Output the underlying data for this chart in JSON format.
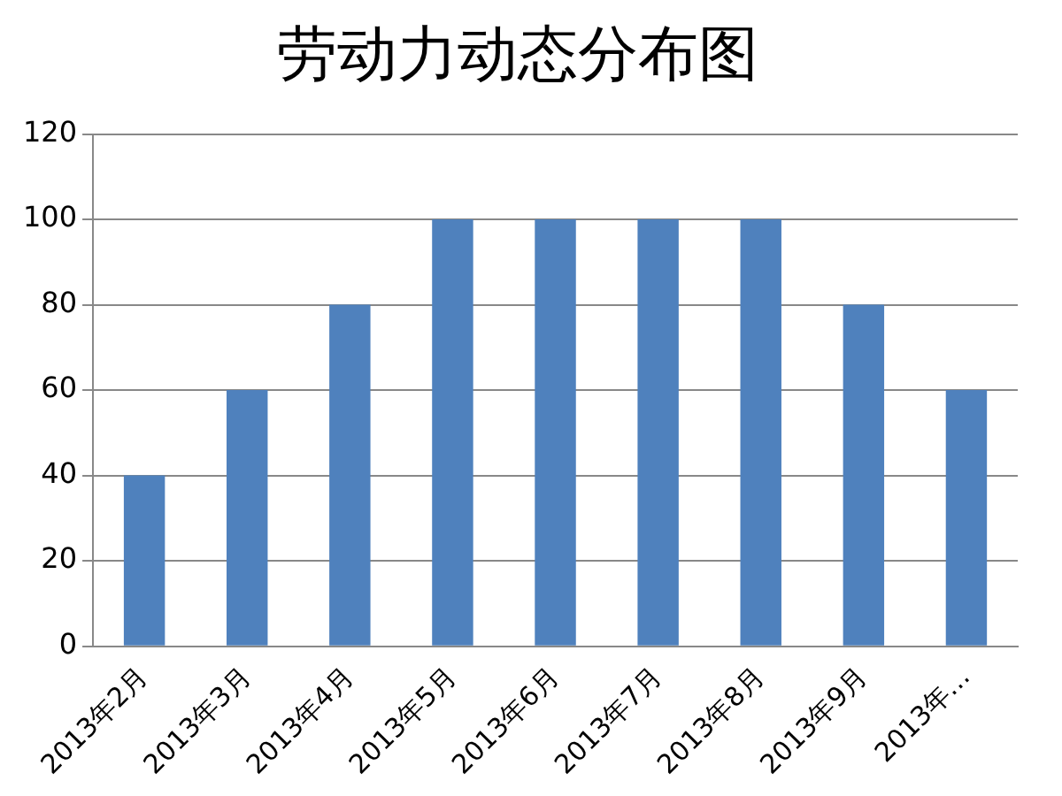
{
  "chart_data": {
    "type": "bar",
    "title": "劳动力动态分布图",
    "categories": [
      "2013年2月",
      "2013年3月",
      "2013年4月",
      "2013年5月",
      "2013年6月",
      "2013年7月",
      "2013年8月",
      "2013年9月",
      "2013年…"
    ],
    "values": [
      40,
      60,
      80,
      100,
      100,
      100,
      100,
      80,
      60
    ],
    "color": "#4f81bd",
    "ylim": [
      0,
      120
    ],
    "yticks": [
      0,
      20,
      40,
      60,
      80,
      100,
      120
    ],
    "grid": "y",
    "legend": false
  }
}
